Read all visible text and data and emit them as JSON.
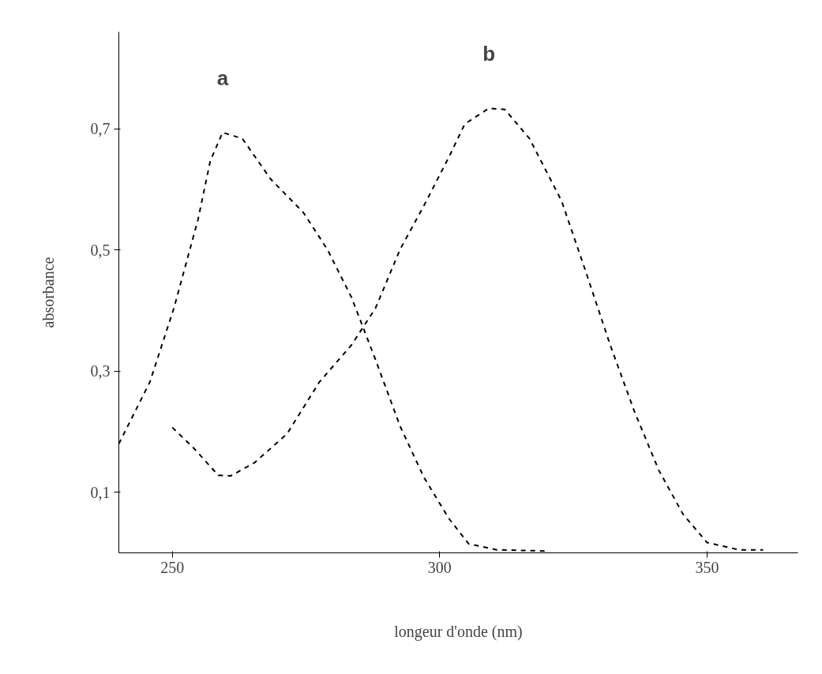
{
  "chart_data": {
    "type": "line",
    "xlabel": "longeur d'onde (nm)",
    "ylabel": "absorbance",
    "xlim": [
      240,
      367
    ],
    "ylim": [
      0,
      0.86
    ],
    "xticks": [
      250,
      300,
      350
    ],
    "yticks": [
      {
        "value": 0.1,
        "label": "0,1"
      },
      {
        "value": 0.3,
        "label": "0,3"
      },
      {
        "value": 0.5,
        "label": "0,5"
      },
      {
        "value": 0.7,
        "label": "0,7"
      }
    ],
    "grid": false,
    "line_style": "dashed",
    "series": [
      {
        "name": "a",
        "color": "#000000",
        "x": [
          240,
          245.8,
          250.3,
          254.8,
          257.1,
          259.4,
          263.1,
          268.4,
          274.5,
          279,
          283.5,
          288,
          292.6,
          297.1,
          301.7,
          305.4,
          310.7,
          319.8
        ],
        "values": [
          0.18,
          0.282,
          0.404,
          0.55,
          0.647,
          0.694,
          0.684,
          0.617,
          0.562,
          0.501,
          0.422,
          0.319,
          0.209,
          0.124,
          0.057,
          0.015,
          0.005,
          0.003
        ]
      },
      {
        "name": "b",
        "color": "#000000",
        "x": [
          250,
          254,
          258.6,
          260.9,
          265.4,
          271.5,
          277.5,
          283.5,
          288,
          292.6,
          297.1,
          301.7,
          304.7,
          309.2,
          312.2,
          316.8,
          322.8,
          327.3,
          331.9,
          336.4,
          341,
          345.5,
          350,
          356,
          360.5
        ],
        "values": [
          0.207,
          0.173,
          0.128,
          0.127,
          0.149,
          0.197,
          0.282,
          0.343,
          0.404,
          0.501,
          0.574,
          0.653,
          0.708,
          0.734,
          0.732,
          0.684,
          0.581,
          0.465,
          0.343,
          0.234,
          0.136,
          0.064,
          0.017,
          0.005,
          0.005
        ]
      }
    ]
  }
}
